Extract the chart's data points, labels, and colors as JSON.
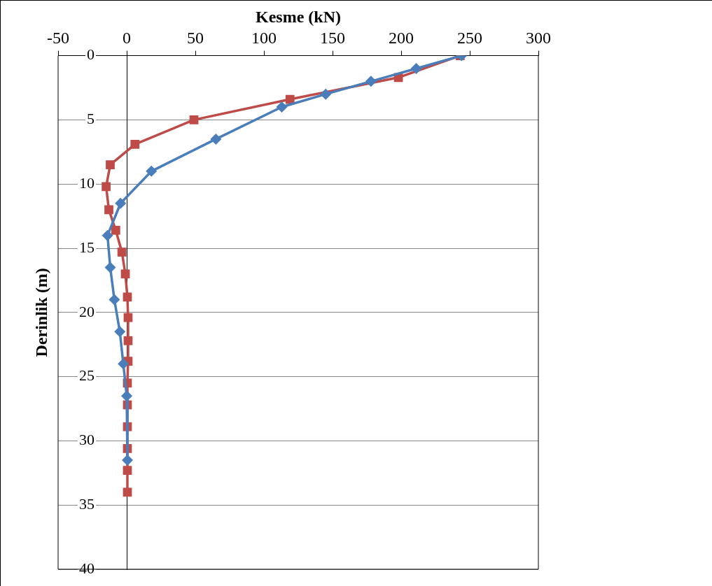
{
  "chart_data": {
    "type": "line",
    "xlabel": "Kesme (kN)",
    "ylabel": "Derinlik (m)",
    "xlim": [
      -50,
      300
    ],
    "xticks": [
      -50,
      0,
      50,
      100,
      150,
      200,
      250,
      300
    ],
    "ylim": [
      40,
      0
    ],
    "yticks": [
      0,
      5,
      10,
      15,
      20,
      25,
      30,
      35,
      40
    ],
    "grid": "y",
    "legend": false,
    "series": [
      {
        "color": "#4a7ebb",
        "marker": "diamond",
        "x": [
          244,
          211,
          178,
          145,
          113,
          65,
          18,
          -4.5,
          -14,
          -12,
          -9,
          -5,
          -2.5,
          0,
          0.5
        ],
        "values": [
          0,
          1,
          2,
          3,
          4,
          6.5,
          9,
          11.5,
          14,
          16.5,
          19,
          21.5,
          24,
          26.5,
          31.5
        ]
      },
      {
        "color": "#be4b48",
        "marker": "square",
        "x": [
          243,
          198,
          119,
          49,
          6,
          -12,
          -15,
          -13,
          -8,
          -3.5,
          -1,
          0.5,
          1,
          1,
          1,
          0.5,
          0.5,
          0.5,
          0.5,
          0.5,
          0.5
        ],
        "values": [
          0,
          1.7,
          3.4,
          5,
          6.9,
          8.5,
          10.2,
          12,
          13.6,
          15.3,
          17,
          18.8,
          20.4,
          22.2,
          23.8,
          25.5,
          27.2,
          28.9,
          30.6,
          32.3,
          34
        ]
      }
    ]
  }
}
